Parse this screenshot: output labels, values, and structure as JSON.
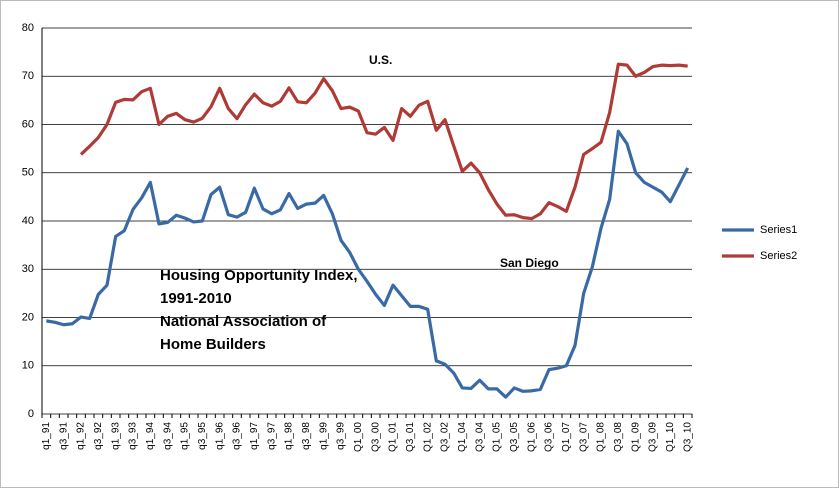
{
  "chart_data": {
    "type": "line",
    "categories": [
      "q1_91",
      null,
      "q3_91",
      null,
      "q1_92",
      null,
      "q3_92",
      null,
      "q1_93",
      null,
      "q3_93",
      null,
      "q1_94",
      null,
      "q3_94",
      null,
      "q1_95",
      null,
      "q3_95",
      null,
      "q1_96",
      null,
      "q3_96",
      null,
      "q1_97",
      null,
      "q3_97",
      null,
      "q1_98",
      null,
      "q3_98",
      null,
      "q1_99",
      null,
      "q3_99",
      null,
      "Q1_00",
      null,
      "Q3_00",
      null,
      "Q1_01",
      null,
      "Q3_01",
      null,
      "Q1_02",
      null,
      "Q3_02",
      null,
      "Q1_04",
      null,
      "Q3_04",
      null,
      "Q1_05",
      null,
      "Q3_05",
      null,
      "Q1_06",
      null,
      "Q3_06",
      null,
      "Q1_07",
      null,
      "Q3_07",
      null,
      "Q1_08",
      null,
      "Q3_08",
      null,
      "Q1_09",
      null,
      "Q3_09",
      null,
      "Q1_10",
      null,
      "Q3_10"
    ],
    "series": [
      {
        "name": "Series1",
        "color": "#3a6aa5",
        "values": [
          19.3,
          19.0,
          18.5,
          18.7,
          20.1,
          19.8,
          24.8,
          26.7,
          36.8,
          38,
          42.4,
          44.8,
          48,
          39.4,
          39.7,
          41.2,
          40.6,
          39.8,
          40.0,
          45.5,
          47,
          41.3,
          40.8,
          41.8,
          46.8,
          42.5,
          41.5,
          42.3,
          45.7,
          42.6,
          43.5,
          43.7,
          45.3,
          41.5,
          36,
          33.5,
          30,
          27.5,
          24.8,
          22.5,
          26.7,
          24.5,
          22.3,
          22.3,
          21.7,
          11,
          10.3,
          8.5,
          5.4,
          5.3,
          7.0,
          5.2,
          5.2,
          3.5,
          5.4,
          4.7,
          4.8,
          5.1,
          9.2,
          9.5,
          10,
          14.2,
          25,
          30.5,
          38.5,
          44.5,
          58.6,
          56,
          50,
          48,
          47,
          46,
          44,
          47.5,
          51
        ]
      },
      {
        "name": "Series2",
        "color": "#b03a36",
        "values": [
          null,
          null,
          null,
          null,
          53.8,
          55.5,
          57.3,
          60,
          64.6,
          65.2,
          65.1,
          66.8,
          67.5,
          60,
          61.7,
          62.3,
          61,
          60.5,
          61.3,
          63.7,
          67.5,
          63.3,
          61.2,
          64.1,
          66.3,
          64.5,
          63.8,
          64.8,
          67.6,
          64.7,
          64.5,
          66.5,
          69.5,
          67,
          63.3,
          63.6,
          62.8,
          58.3,
          58,
          59.4,
          56.7,
          63.3,
          61.7,
          64,
          64.8,
          58.8,
          61,
          55.6,
          50.3,
          52,
          50,
          46.5,
          43.5,
          41.2,
          41.3,
          40.7,
          40.5,
          41.5,
          43.8,
          43,
          42,
          47,
          53.8,
          55,
          56.3,
          62.5,
          72.5,
          72.3,
          70,
          70.8,
          72,
          72.3,
          72.2,
          72.3,
          72.1
        ]
      }
    ],
    "ylim": [
      0,
      80
    ],
    "yticks": [
      0,
      10,
      20,
      30,
      40,
      50,
      60,
      70,
      80
    ],
    "grid": true,
    "legend": "right",
    "annotations": [
      "U.S.",
      "San Diego"
    ],
    "notes": [
      "Housing Opportunity Index,",
      "1991-2010",
      "National Association of",
      "Home Builders"
    ]
  }
}
